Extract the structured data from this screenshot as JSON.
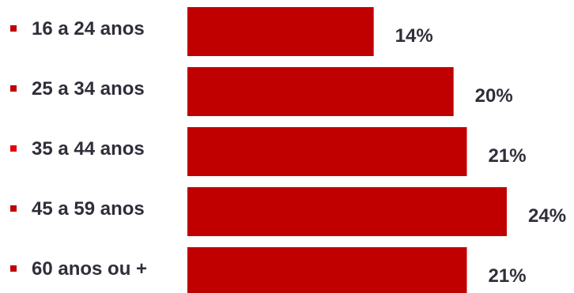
{
  "chart_data": {
    "type": "bar",
    "orientation": "horizontal",
    "categories": [
      "16 a 24 anos",
      "25 a 34 anos",
      "35 a 44 anos",
      "45 a 59 anos",
      "60 anos ou +"
    ],
    "values": [
      14,
      20,
      21,
      24,
      21
    ],
    "value_labels": [
      "14%",
      "20%",
      "21%",
      "24%",
      "21%"
    ],
    "unit": "%",
    "xlim": [
      0,
      24
    ],
    "bar_color": "#c00000",
    "bullet_colors": [
      "#c00000",
      "#c00000",
      "#e60000",
      "#c00000",
      "#c00000"
    ],
    "text_color": "#2f2f3a",
    "grid": false,
    "legend": "none"
  }
}
